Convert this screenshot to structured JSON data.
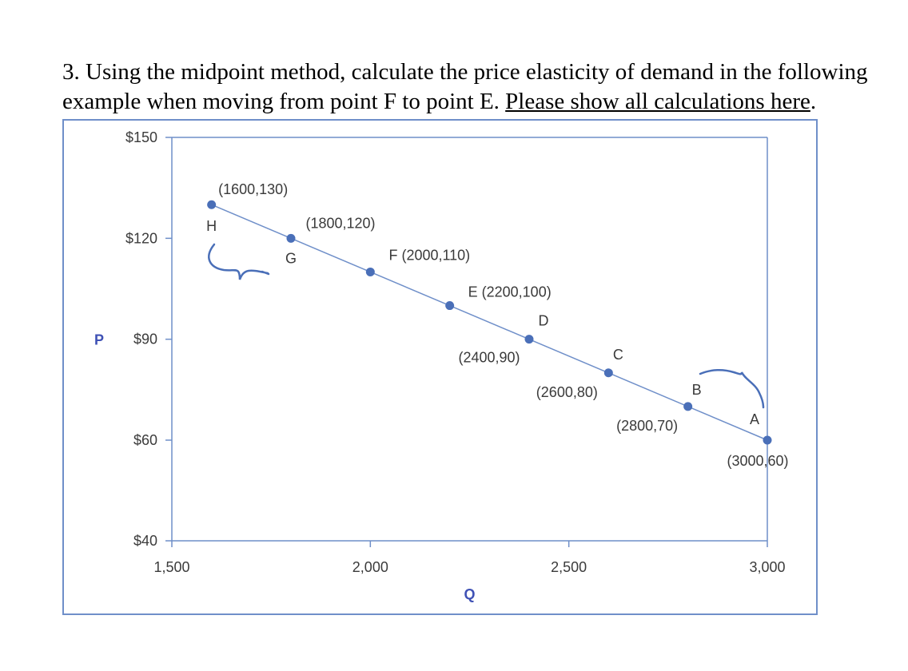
{
  "question": {
    "text": "3. Using the midpoint method, calculate the price elasticity of demand in the following example when moving from point F to point E. ",
    "underlined": "Please show all calculations here",
    "period": "."
  },
  "colors": {
    "line": "#6f8fc9",
    "point": "#4a6fb8",
    "axis": "#6f8fc9",
    "frame": "#6f8fc9",
    "axis_title": "#3f51b5"
  },
  "chart_data": {
    "type": "line",
    "xlabel": "Q",
    "ylabel": "P",
    "xlim": [
      1500,
      3000
    ],
    "ylim": [
      40,
      150
    ],
    "x_ticks": [
      {
        "value": 1500,
        "label": "1,500"
      },
      {
        "value": 2000,
        "label": "2,000"
      },
      {
        "value": 2500,
        "label": "2,500"
      },
      {
        "value": 3000,
        "label": "3,000"
      }
    ],
    "y_ticks": [
      {
        "value": 150,
        "label": "$150"
      },
      {
        "value": 120,
        "label": "$120"
      },
      {
        "value": 90,
        "label": "$90"
      },
      {
        "value": 60,
        "label": "$60"
      },
      {
        "value": 40,
        "label": "$40"
      }
    ],
    "series": [
      {
        "x": [
          1600,
          1800,
          2000,
          2200,
          2400,
          2600,
          2800,
          3000
        ],
        "y": [
          130,
          120,
          110,
          100,
          90,
          80,
          70,
          60
        ]
      }
    ],
    "points": [
      {
        "id": "H",
        "x": 1600,
        "y": 130,
        "letter": "H",
        "coord": "(1600,130)"
      },
      {
        "id": "G",
        "x": 1800,
        "y": 120,
        "letter": "G",
        "coord": "(1800,120)"
      },
      {
        "id": "F",
        "x": 2000,
        "y": 110,
        "letter": "",
        "coord": "F (2000,110)"
      },
      {
        "id": "E",
        "x": 2200,
        "y": 100,
        "letter": "",
        "coord": "E (2200,100)"
      },
      {
        "id": "D",
        "x": 2400,
        "y": 90,
        "letter": "D",
        "coord": "(2400,90)"
      },
      {
        "id": "C",
        "x": 2600,
        "y": 80,
        "letter": "C",
        "coord": "(2600,80)"
      },
      {
        "id": "B",
        "x": 2800,
        "y": 70,
        "letter": "B",
        "coord": "(2800,70)"
      },
      {
        "id": "A",
        "x": 3000,
        "y": 60,
        "letter": "A",
        "coord": "(3000,60)"
      }
    ]
  }
}
